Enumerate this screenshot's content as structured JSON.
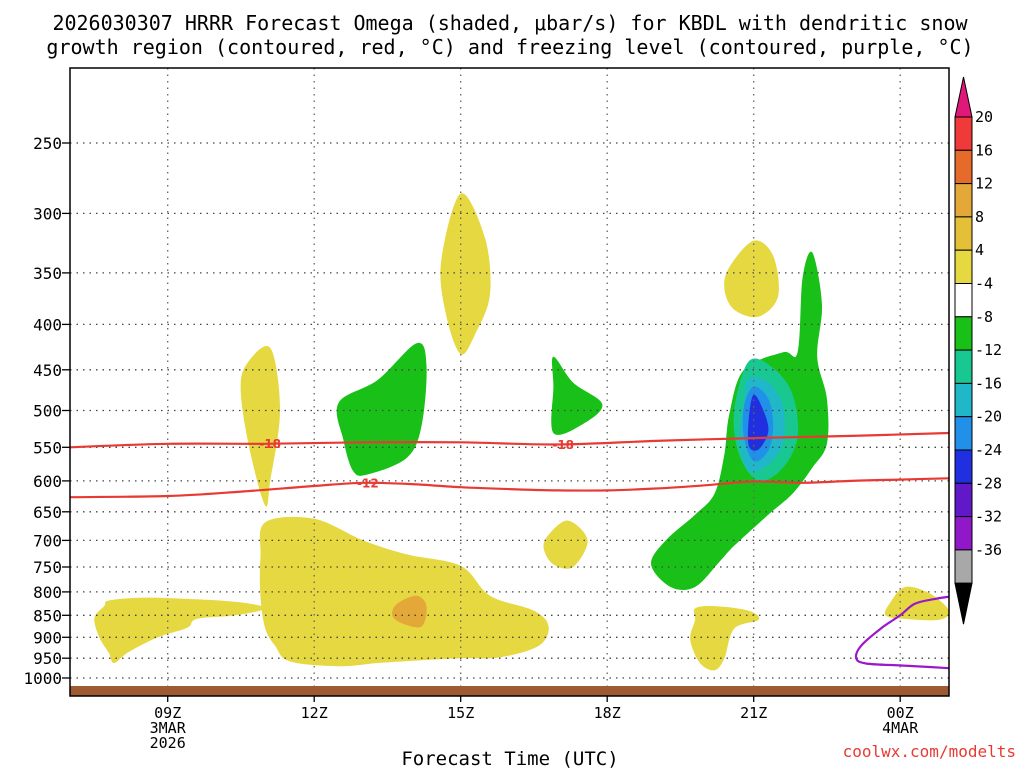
{
  "chart_data": {
    "type": "contour",
    "title_line1": "2026030307 HRRR Forecast Omega (shaded, μbar/s) for KBDL with dendritic snow",
    "title_line2": "growth region (contoured, red, °C) and freezing level (contoured, purple, °C)",
    "xlabel": "Forecast Time (UTC)",
    "credit": "coolwx.com/modelts",
    "xlim_hours": [
      7,
      25
    ],
    "pressure_levels_hpa": [
      "250",
      "300",
      "350",
      "400",
      "450",
      "500",
      "550",
      "600",
      "650",
      "700",
      "750",
      "800",
      "850",
      "900",
      "950",
      "1000"
    ],
    "x_ticks": [
      {
        "hour": 9,
        "lines": [
          "09Z",
          "3MAR",
          "2026"
        ]
      },
      {
        "hour": 12,
        "lines": [
          "12Z"
        ]
      },
      {
        "hour": 15,
        "lines": [
          "15Z"
        ]
      },
      {
        "hour": 18,
        "lines": [
          "18Z"
        ]
      },
      {
        "hour": 21,
        "lines": [
          "21Z"
        ]
      },
      {
        "hour": 24,
        "lines": [
          "00Z",
          "4MAR"
        ]
      }
    ],
    "colorbar_labels": [
      "20",
      "16",
      "12",
      "8",
      "4",
      "-4",
      "-8",
      "-12",
      "-16",
      "-20",
      "-24",
      "-28",
      "-32",
      "-36"
    ],
    "colorbar_colors": [
      "#f03a3a",
      "#e66a2a",
      "#e3a838",
      "#e3c038",
      "#e6d840",
      "#ffffff",
      "#18c018",
      "#18c890",
      "#20b8c8",
      "#2090e8",
      "#2030e0",
      "#6018c8",
      "#9018c8",
      "#a8a8a8"
    ],
    "colorbar_top_color": "#e0187a",
    "colorbar_bottom_color": "#000000",
    "contours": [
      {
        "name": "isotherm",
        "label": "-18",
        "value": -18,
        "color": "#e83a34",
        "points": [
          [
            7,
            550
          ],
          [
            9,
            545
          ],
          [
            11,
            545
          ],
          [
            13,
            543
          ],
          [
            15,
            543
          ],
          [
            17,
            546
          ],
          [
            19,
            541
          ],
          [
            21,
            537
          ],
          [
            23,
            534
          ],
          [
            25,
            530
          ]
        ],
        "label_hours": [
          11.1,
          17.1
        ]
      },
      {
        "name": "isotherm",
        "label": "-12",
        "value": -12,
        "color": "#e83a34",
        "points": [
          [
            7,
            626
          ],
          [
            9,
            624
          ],
          [
            10.5,
            617
          ],
          [
            12,
            608
          ],
          [
            13,
            603
          ],
          [
            14,
            605
          ],
          [
            15,
            610
          ],
          [
            16,
            613
          ],
          [
            17,
            615
          ],
          [
            18,
            615
          ],
          [
            19,
            612
          ],
          [
            20,
            607
          ],
          [
            21,
            601
          ],
          [
            22,
            603
          ],
          [
            23,
            600
          ],
          [
            24,
            598
          ],
          [
            25,
            596
          ]
        ],
        "label_hours": [
          13.1
        ]
      },
      {
        "name": "freezing-level",
        "label": "0",
        "value": 0,
        "color": "#9a18c8",
        "points": [
          [
            25,
            810
          ],
          [
            24.7,
            815
          ],
          [
            24.3,
            825
          ],
          [
            24,
            850
          ],
          [
            23.6,
            880
          ],
          [
            23.2,
            920
          ],
          [
            23.1,
            950
          ],
          [
            23.3,
            963
          ],
          [
            24,
            968
          ],
          [
            24.6,
            972
          ],
          [
            25,
            975
          ]
        ],
        "label_hours": []
      }
    ],
    "shaded_regions": [
      {
        "name": "omega-weak-rising",
        "level": "4",
        "color": "#e6d840",
        "points": [
          [
            7.8,
            818
          ],
          [
            8.5,
            812
          ],
          [
            9.5,
            815
          ],
          [
            10.5,
            822
          ],
          [
            11,
            835
          ],
          [
            10.4,
            850
          ],
          [
            9.6,
            858
          ],
          [
            9.4,
            878
          ],
          [
            8.8,
            900
          ],
          [
            8.2,
            935
          ],
          [
            7.9,
            962
          ],
          [
            7.8,
            938
          ],
          [
            7.6,
            900
          ],
          [
            7.5,
            856
          ],
          [
            7.7,
            830
          ]
        ]
      },
      {
        "name": "omega-weak-rising",
        "level": "4",
        "color": "#e6d840",
        "points": [
          [
            11,
            668
          ],
          [
            12,
            662
          ],
          [
            13,
            700
          ],
          [
            13.9,
            726
          ],
          [
            15,
            748
          ],
          [
            15.6,
            808
          ],
          [
            16.5,
            840
          ],
          [
            16.8,
            875
          ],
          [
            16.6,
            920
          ],
          [
            15.8,
            948
          ],
          [
            15,
            950
          ],
          [
            14.2,
            955
          ],
          [
            13.3,
            962
          ],
          [
            12.5,
            970
          ],
          [
            11.5,
            958
          ],
          [
            11.2,
            920
          ],
          [
            11,
            880
          ],
          [
            10.9,
            810
          ],
          [
            10.9,
            730
          ]
        ]
      },
      {
        "name": "omega-weak-rising",
        "level": "4",
        "color": "#e6d840",
        "points": [
          [
            10.6,
            445
          ],
          [
            11.1,
            425
          ],
          [
            11.3,
            500
          ],
          [
            11.1,
            600
          ],
          [
            11,
            640
          ],
          [
            10.7,
            560
          ],
          [
            10.5,
            480
          ]
        ]
      },
      {
        "name": "omega-weak-rising",
        "level": "4",
        "color": "#e6d840",
        "points": [
          [
            14.6,
            340
          ],
          [
            15,
            285
          ],
          [
            15.5,
            320
          ],
          [
            15.6,
            370
          ],
          [
            15.3,
            410
          ],
          [
            15,
            432
          ],
          [
            14.7,
            390
          ]
        ]
      },
      {
        "name": "omega-weak-rising",
        "level": "4",
        "color": "#e6d840",
        "points": [
          [
            16.8,
            690
          ],
          [
            17.2,
            665
          ],
          [
            17.6,
            700
          ],
          [
            17.3,
            750
          ],
          [
            16.9,
            745
          ],
          [
            16.7,
            715
          ]
        ]
      },
      {
        "name": "omega-weak-rising",
        "level": "4",
        "color": "#e6d840",
        "points": [
          [
            19.8,
            835
          ],
          [
            20.2,
            830
          ],
          [
            20.9,
            840
          ],
          [
            21.1,
            860
          ],
          [
            20.6,
            880
          ],
          [
            20.4,
            950
          ],
          [
            20.2,
            980
          ],
          [
            19.9,
            962
          ],
          [
            19.7,
            905
          ],
          [
            19.8,
            860
          ]
        ]
      },
      {
        "name": "omega-weak-rising",
        "level": "4",
        "color": "#e6d840",
        "points": [
          [
            20.5,
            345
          ],
          [
            21,
            322
          ],
          [
            21.4,
            335
          ],
          [
            21.5,
            372
          ],
          [
            21.1,
            392
          ],
          [
            20.6,
            385
          ],
          [
            20.4,
            365
          ]
        ]
      },
      {
        "name": "omega-weak-rising",
        "level": "4",
        "color": "#e6d840",
        "points": [
          [
            23.8,
            822
          ],
          [
            24.1,
            790
          ],
          [
            24.6,
            803
          ],
          [
            25,
            840
          ],
          [
            24.8,
            860
          ],
          [
            24.1,
            858
          ],
          [
            23.7,
            850
          ]
        ]
      },
      {
        "name": "omega-moderate-rising",
        "level": "8",
        "color": "#e3a838",
        "points": [
          [
            13.7,
            825
          ],
          [
            14.1,
            808
          ],
          [
            14.3,
            830
          ],
          [
            14.2,
            875
          ],
          [
            13.8,
            868
          ],
          [
            13.6,
            850
          ]
        ]
      },
      {
        "name": "omega-sinking",
        "level": "-4",
        "color": "#18c018",
        "points": [
          [
            12.5,
            490
          ],
          [
            13.3,
            462
          ],
          [
            14.1,
            420
          ],
          [
            14.3,
            445
          ],
          [
            14.2,
            520
          ],
          [
            13.9,
            565
          ],
          [
            13.1,
            590
          ],
          [
            12.8,
            585
          ],
          [
            12.6,
            540
          ]
        ]
      },
      {
        "name": "omega-sinking",
        "level": "-4",
        "color": "#18c018",
        "points": [
          [
            16.9,
            435
          ],
          [
            17.3,
            465
          ],
          [
            17.9,
            492
          ],
          [
            17.5,
            518
          ],
          [
            16.9,
            530
          ],
          [
            16.9,
            470
          ]
        ]
      },
      {
        "name": "omega-sinking",
        "level": "-4",
        "color": "#18c018",
        "points": [
          [
            20.8,
            450
          ],
          [
            21.6,
            430
          ],
          [
            21.9,
            430
          ],
          [
            22,
            355
          ],
          [
            22.2,
            332
          ],
          [
            22.4,
            380
          ],
          [
            22.3,
            435
          ],
          [
            22.5,
            485
          ],
          [
            22.5,
            545
          ],
          [
            22.2,
            580
          ],
          [
            21.8,
            620
          ],
          [
            21.3,
            655
          ],
          [
            20.6,
            710
          ],
          [
            20.3,
            740
          ],
          [
            19.8,
            790
          ],
          [
            19.3,
            790
          ],
          [
            18.9,
            745
          ],
          [
            19.2,
            700
          ],
          [
            19.8,
            655
          ],
          [
            20.2,
            620
          ],
          [
            20.4,
            560
          ],
          [
            20.5,
            505
          ]
        ]
      },
      {
        "name": "omega-strong-sinking",
        "level": "-8",
        "color": "#18c890",
        "points": [
          [
            20.9,
            440
          ],
          [
            21.4,
            448
          ],
          [
            21.8,
            480
          ],
          [
            21.9,
            535
          ],
          [
            21.6,
            580
          ],
          [
            21.1,
            600
          ],
          [
            20.7,
            560
          ],
          [
            20.6,
            500
          ]
        ]
      },
      {
        "name": "omega-strong-sinking",
        "level": "-12",
        "color": "#20b8c8",
        "points": [
          [
            20.9,
            460
          ],
          [
            21.3,
            465
          ],
          [
            21.6,
            495
          ],
          [
            21.6,
            545
          ],
          [
            21.3,
            575
          ],
          [
            20.9,
            585
          ],
          [
            20.7,
            540
          ],
          [
            20.8,
            490
          ]
        ]
      },
      {
        "name": "omega-strong-sinking",
        "level": "-16",
        "color": "#2090e8",
        "points": [
          [
            21,
            470
          ],
          [
            21.3,
            485
          ],
          [
            21.4,
            520
          ],
          [
            21.3,
            555
          ],
          [
            21,
            570
          ],
          [
            20.8,
            535
          ],
          [
            20.8,
            495
          ]
        ]
      },
      {
        "name": "omega-strong-sinking",
        "level": "-20",
        "color": "#2030e0",
        "points": [
          [
            21,
            480
          ],
          [
            21.2,
            500
          ],
          [
            21.3,
            528
          ],
          [
            21.1,
            553
          ],
          [
            20.9,
            548
          ],
          [
            20.9,
            510
          ]
        ]
      }
    ],
    "terrain_color": "#9e5a32"
  }
}
